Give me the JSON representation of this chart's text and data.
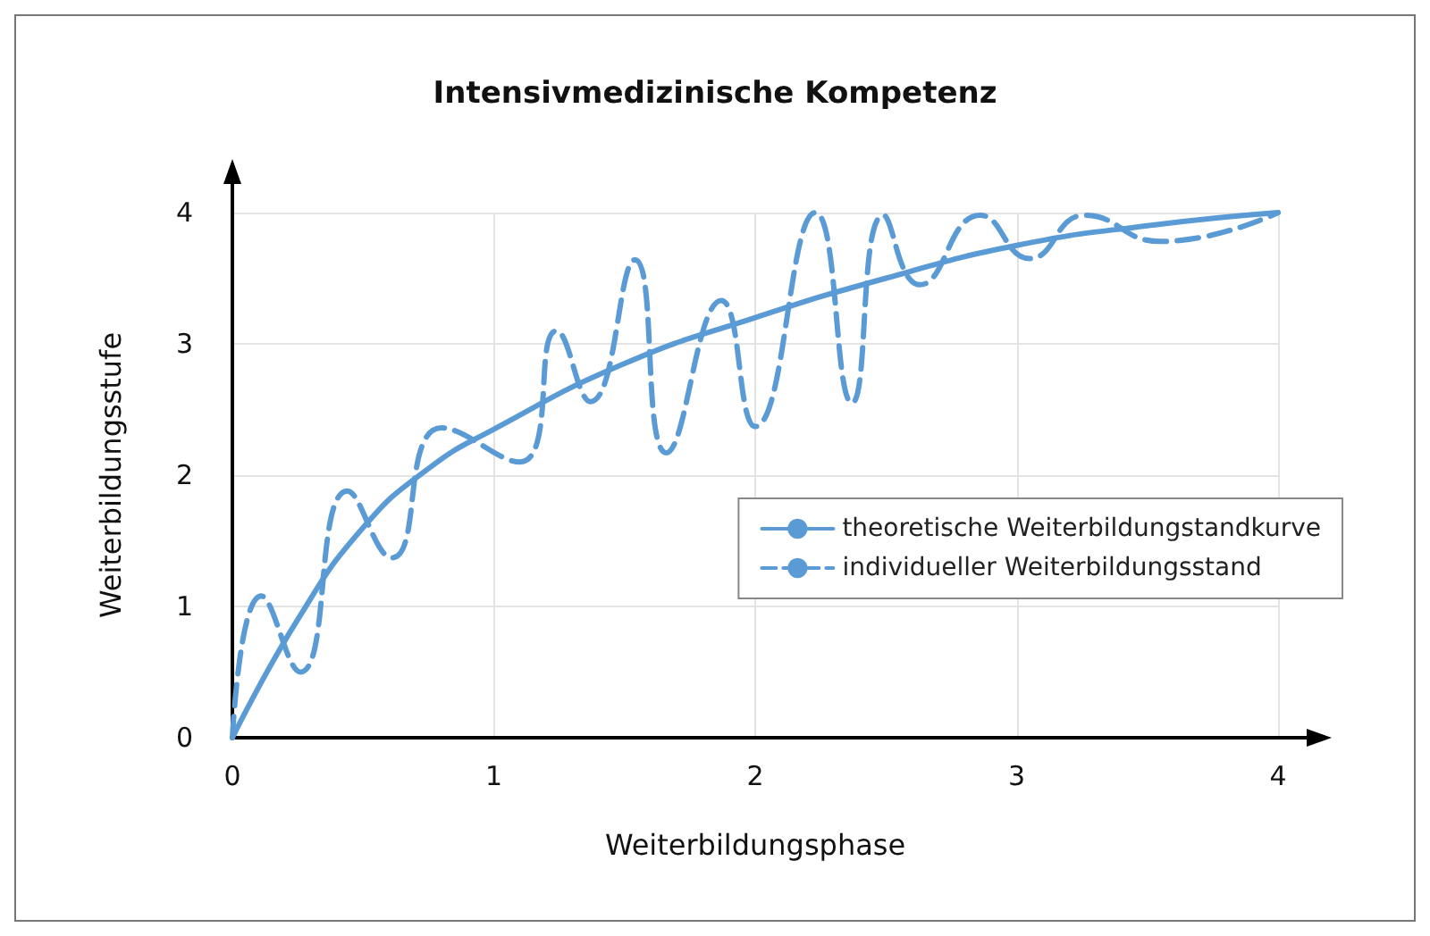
{
  "chart_data": {
    "type": "line",
    "title": "Intensivmedizinische Kompetenz",
    "xlabel": "Weiterbildungsphase",
    "ylabel": "Weiterbildungsstufe",
    "xlim": [
      0,
      4
    ],
    "ylim": [
      0,
      4
    ],
    "xticks": [
      0,
      1,
      2,
      3,
      4
    ],
    "yticks": [
      0,
      1,
      2,
      3,
      4
    ],
    "grid": true,
    "legend": "right",
    "marker": "none",
    "series": [
      {
        "name": "theoretische Weiterbildungstandkurve",
        "color": "#5b9bd5",
        "line_style": "solid",
        "x": [
          0,
          0.25,
          0.5,
          0.75,
          1,
          1.5,
          2,
          2.5,
          3,
          3.5,
          4
        ],
        "values": [
          0,
          0.9,
          1.6,
          2.05,
          2.35,
          2.85,
          3.2,
          3.5,
          3.75,
          3.9,
          4
        ]
      },
      {
        "name": "individueller Weiterbildungsstand",
        "color": "#5b9bd5",
        "line_style": "dashed",
        "x": [
          0,
          0.11,
          0.26,
          0.44,
          0.61,
          0.8,
          1.1,
          1.24,
          1.37,
          1.54,
          1.66,
          1.87,
          2.0,
          2.23,
          2.37,
          2.49,
          2.63,
          2.86,
          3.05,
          3.26,
          3.55,
          4
        ],
        "values": [
          0,
          1.08,
          0.5,
          1.88,
          1.37,
          2.36,
          2.1,
          3.1,
          2.56,
          3.64,
          2.17,
          3.33,
          2.37,
          4.0,
          2.55,
          3.98,
          3.45,
          3.98,
          3.65,
          3.98,
          3.78,
          4
        ]
      }
    ]
  }
}
